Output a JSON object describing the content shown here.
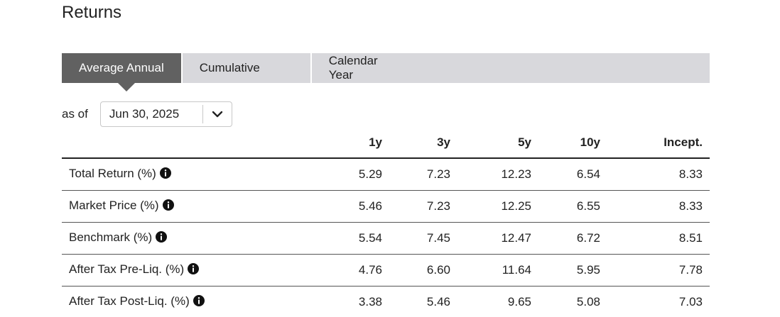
{
  "section": {
    "title": "Returns"
  },
  "tabs": [
    {
      "label": "Average Annual",
      "active": true
    },
    {
      "label": "Cumulative",
      "active": false
    },
    {
      "label": "Calendar Year",
      "active": false
    }
  ],
  "as_of": {
    "label": "as of",
    "selected_date": "Jun 30, 2025",
    "dropdown_icon": "chevron-down-icon"
  },
  "table": {
    "columns": [
      "",
      "1y",
      "3y",
      "5y",
      "10y",
      "Incept."
    ],
    "info_icon": "info-icon",
    "rows": [
      {
        "label": "Total Return (%)",
        "values": [
          "5.29",
          "7.23",
          "12.23",
          "6.54",
          "8.33"
        ]
      },
      {
        "label": "Market Price (%)",
        "values": [
          "5.46",
          "7.23",
          "12.25",
          "6.55",
          "8.33"
        ]
      },
      {
        "label": "Benchmark (%)",
        "values": [
          "5.54",
          "7.45",
          "12.47",
          "6.72",
          "8.51"
        ]
      },
      {
        "label": "After Tax Pre-Liq. (%)",
        "values": [
          "4.76",
          "6.60",
          "11.64",
          "5.95",
          "7.78"
        ]
      },
      {
        "label": "After Tax Post-Liq. (%)",
        "values": [
          "3.38",
          "5.46",
          "9.65",
          "5.08",
          "7.03"
        ]
      }
    ]
  },
  "colors": {
    "active_tab_bg": "#616161",
    "tab_bar_bg": "#d8d8dc",
    "text": "#222222"
  }
}
